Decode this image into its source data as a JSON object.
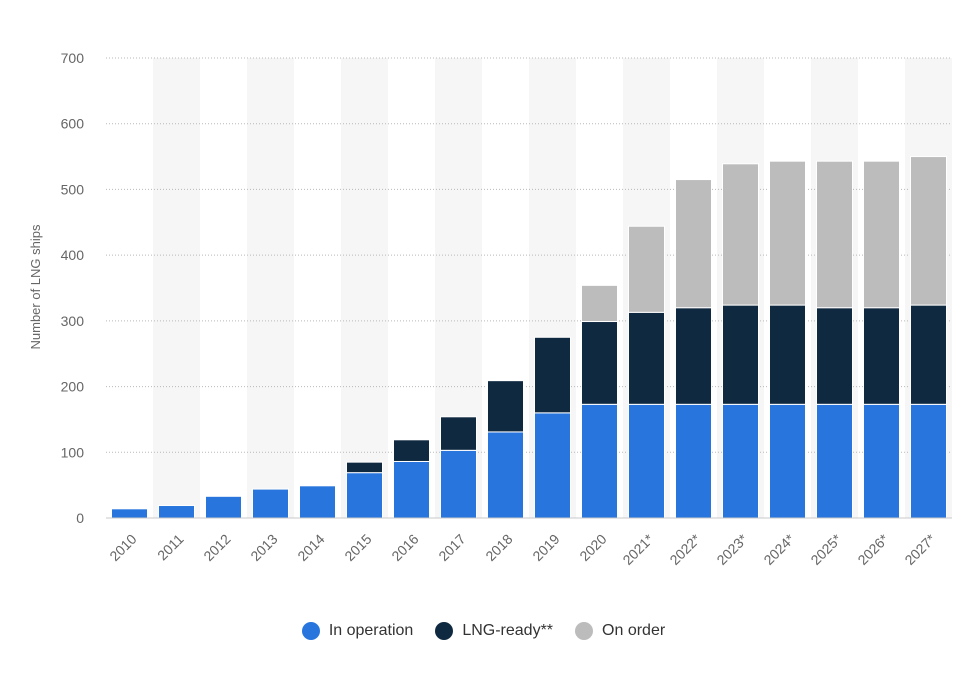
{
  "chart_data": {
    "type": "bar",
    "stacked": true,
    "ylabel": "Number of LNG ships",
    "xlabel": "",
    "ylim": [
      0,
      700
    ],
    "yticks": [
      0,
      100,
      200,
      300,
      400,
      500,
      600,
      700
    ],
    "grid": true,
    "legend_position": "bottom",
    "categories": [
      "2010",
      "2011",
      "2012",
      "2013",
      "2014",
      "2015",
      "2016",
      "2017",
      "2018",
      "2019",
      "2020",
      "2021*",
      "2022*",
      "2023*",
      "2024*",
      "2025*",
      "2026*",
      "2027*"
    ],
    "series": [
      {
        "name": "In operation",
        "color": "#2876dd",
        "values": [
          14,
          19,
          33,
          44,
          49,
          69,
          86,
          103,
          131,
          160,
          173,
          173,
          173,
          173,
          173,
          173,
          173,
          173
        ]
      },
      {
        "name": "LNG-ready**",
        "color": "#0f2940",
        "values": [
          0,
          0,
          0,
          0,
          0,
          16,
          33,
          51,
          78,
          115,
          126,
          140,
          147,
          151,
          151,
          147,
          147,
          151
        ]
      },
      {
        "name": "On order",
        "color": "#bcbcbc",
        "values": [
          0,
          0,
          0,
          0,
          0,
          0,
          0,
          0,
          0,
          0,
          55,
          131,
          195,
          215,
          219,
          223,
          223,
          226
        ]
      }
    ]
  }
}
